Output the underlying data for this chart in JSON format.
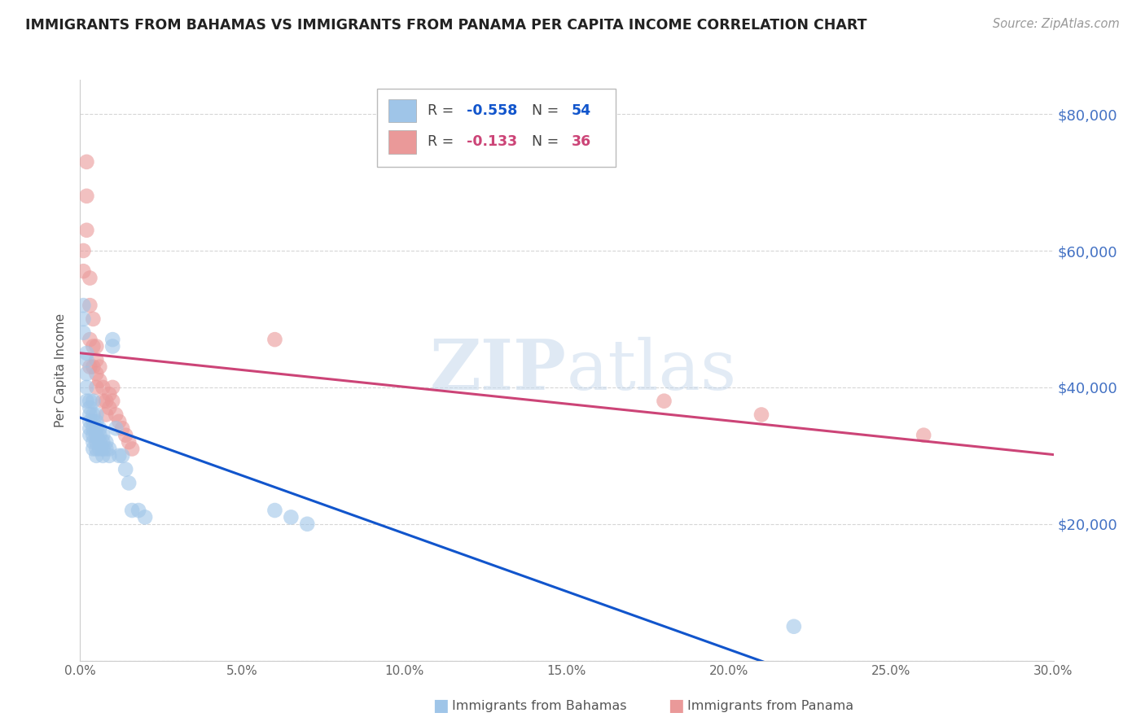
{
  "title": "IMMIGRANTS FROM BAHAMAS VS IMMIGRANTS FROM PANAMA PER CAPITA INCOME CORRELATION CHART",
  "source": "Source: ZipAtlas.com",
  "ylabel": "Per Capita Income",
  "yticks": [
    0,
    20000,
    40000,
    60000,
    80000
  ],
  "ytick_labels": [
    "",
    "$20,000",
    "$40,000",
    "$60,000",
    "$80,000"
  ],
  "xlim": [
    0.0,
    0.3
  ],
  "ylim": [
    0,
    85000
  ],
  "r_bahamas": "-0.558",
  "n_bahamas": "54",
  "r_panama": "-0.133",
  "n_panama": "36",
  "color_bahamas": "#9fc5e8",
  "color_panama": "#ea9999",
  "line_color_bahamas": "#1155cc",
  "line_color_panama": "#cc4477",
  "watermark_zip": "ZIP",
  "watermark_atlas": "atlas",
  "bahamas_x": [
    0.001,
    0.001,
    0.001,
    0.002,
    0.002,
    0.002,
    0.002,
    0.002,
    0.003,
    0.003,
    0.003,
    0.003,
    0.003,
    0.003,
    0.004,
    0.004,
    0.004,
    0.004,
    0.004,
    0.004,
    0.004,
    0.005,
    0.005,
    0.005,
    0.005,
    0.005,
    0.005,
    0.005,
    0.006,
    0.006,
    0.006,
    0.006,
    0.007,
    0.007,
    0.007,
    0.007,
    0.008,
    0.008,
    0.009,
    0.009,
    0.01,
    0.01,
    0.011,
    0.012,
    0.013,
    0.014,
    0.015,
    0.016,
    0.018,
    0.02,
    0.06,
    0.065,
    0.07,
    0.22
  ],
  "bahamas_y": [
    52000,
    50000,
    48000,
    45000,
    44000,
    42000,
    40000,
    38000,
    38000,
    37000,
    36000,
    35000,
    34000,
    33000,
    38000,
    36000,
    35000,
    34000,
    33000,
    32000,
    31000,
    36000,
    35000,
    34000,
    33000,
    32000,
    31000,
    30000,
    34000,
    33000,
    32000,
    31000,
    33000,
    32000,
    31000,
    30000,
    32000,
    31000,
    31000,
    30000,
    46000,
    47000,
    34000,
    30000,
    30000,
    28000,
    26000,
    22000,
    22000,
    21000,
    22000,
    21000,
    20000,
    5000
  ],
  "panama_x": [
    0.001,
    0.001,
    0.002,
    0.002,
    0.002,
    0.003,
    0.003,
    0.003,
    0.003,
    0.004,
    0.004,
    0.004,
    0.005,
    0.005,
    0.005,
    0.005,
    0.006,
    0.006,
    0.007,
    0.007,
    0.008,
    0.008,
    0.009,
    0.009,
    0.01,
    0.01,
    0.011,
    0.012,
    0.013,
    0.014,
    0.015,
    0.016,
    0.06,
    0.18,
    0.21,
    0.26
  ],
  "panama_y": [
    60000,
    57000,
    73000,
    68000,
    63000,
    56000,
    52000,
    47000,
    43000,
    50000,
    46000,
    43000,
    46000,
    44000,
    42000,
    40000,
    43000,
    41000,
    40000,
    38000,
    38000,
    36000,
    39000,
    37000,
    40000,
    38000,
    36000,
    35000,
    34000,
    33000,
    32000,
    31000,
    47000,
    38000,
    36000,
    33000
  ],
  "bahamas_line_solid_end": 0.215,
  "bahamas_line_start_x": 0.0,
  "bahamas_line_end_x": 0.3,
  "panama_line_start_x": 0.0,
  "panama_line_end_x": 0.3
}
